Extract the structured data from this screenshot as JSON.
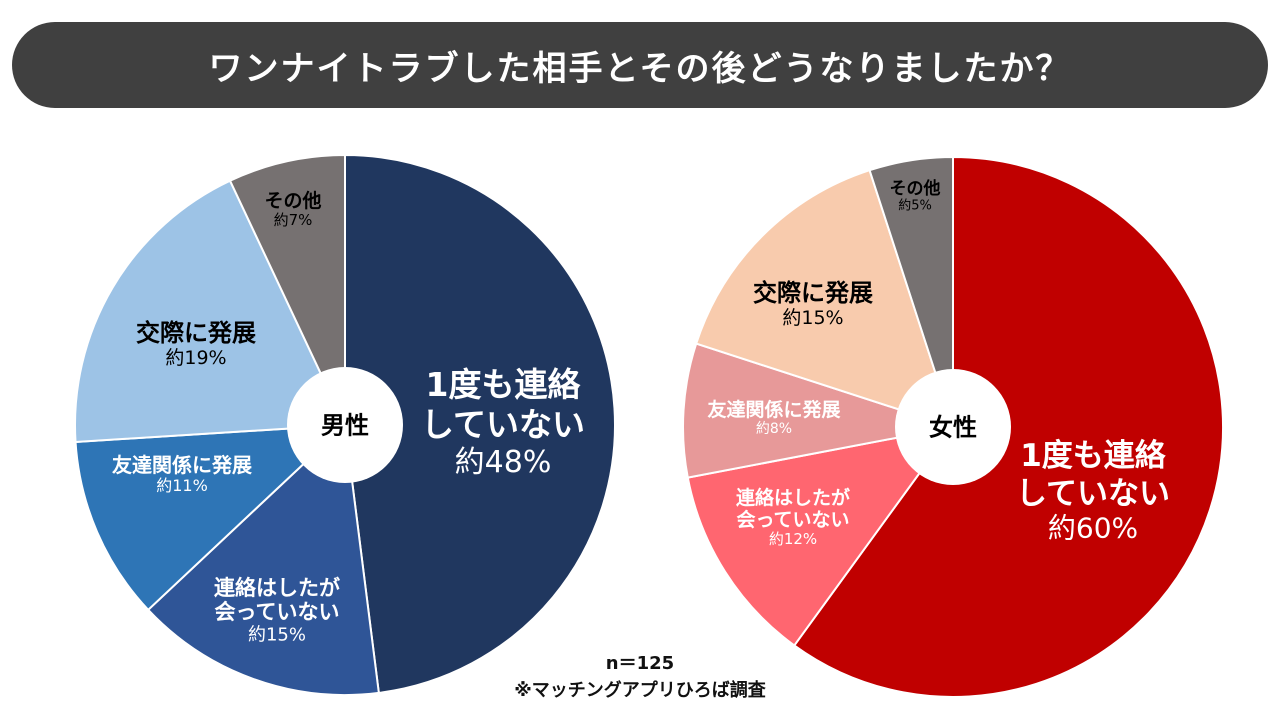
{
  "title": "ワンナイトラブした相手とその後どうなりましたか？",
  "footer": {
    "sample": "n＝125",
    "source": "※マッチングアプリひろば調査"
  },
  "chart_data": [
    {
      "type": "pie",
      "center_label": "男性",
      "slices": [
        {
          "label_lines": [
            "1度も連絡",
            "していない"
          ],
          "pct_label": "約48%",
          "value": 48,
          "color": "#20375f",
          "text_color": "#ffffff"
        },
        {
          "label_lines": [
            "連絡はしたが",
            "会っていない"
          ],
          "pct_label": "約15%",
          "value": 15,
          "color": "#2f5597",
          "text_color": "#ffffff"
        },
        {
          "label_lines": [
            "友達関係に発展"
          ],
          "pct_label": "約11%",
          "value": 11,
          "color": "#2e75b6",
          "text_color": "#ffffff"
        },
        {
          "label_lines": [
            "交際に発展"
          ],
          "pct_label": "約19%",
          "value": 19,
          "color": "#9dc3e6",
          "text_color": "#000000"
        },
        {
          "label_lines": [
            "その他"
          ],
          "pct_label": "約7%",
          "value": 7,
          "color": "#767171",
          "text_color": "#000000"
        }
      ]
    },
    {
      "type": "pie",
      "center_label": "女性",
      "slices": [
        {
          "label_lines": [
            "1度も連絡",
            "していない"
          ],
          "pct_label": "約60%",
          "value": 60,
          "color": "#c00000",
          "text_color": "#ffffff"
        },
        {
          "label_lines": [
            "連絡はしたが",
            "会っていない"
          ],
          "pct_label": "約12%",
          "value": 12,
          "color": "#ff6670",
          "text_color": "#ffffff"
        },
        {
          "label_lines": [
            "友達関係に発展"
          ],
          "pct_label": "約8%",
          "value": 8,
          "color": "#e79999",
          "text_color": "#ffffff"
        },
        {
          "label_lines": [
            "交際に発展"
          ],
          "pct_label": "約15%",
          "value": 15,
          "color": "#f8cbad",
          "text_color": "#000000"
        },
        {
          "label_lines": [
            "その他"
          ],
          "pct_label": "約5%",
          "value": 5,
          "color": "#767171",
          "text_color": "#000000"
        }
      ]
    }
  ]
}
